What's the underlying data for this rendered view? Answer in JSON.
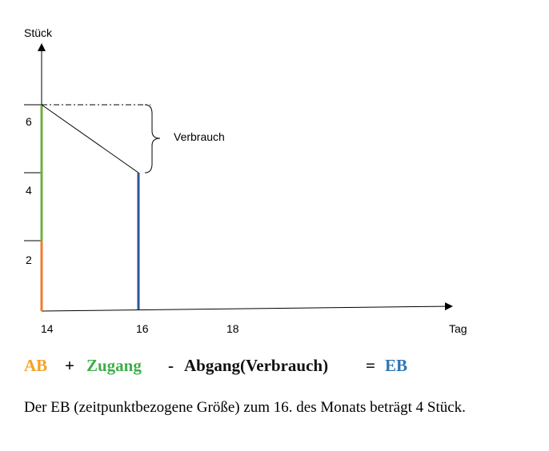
{
  "diagram": {
    "y_axis_label": "Stück",
    "x_axis_label": "Tag",
    "y_ticks": [
      "2",
      "4",
      "6"
    ],
    "x_ticks": [
      "14",
      "16",
      "18"
    ],
    "annotation": "Verbrauch",
    "colors": {
      "ab": "#ed7d31",
      "zugang": "#70ad47",
      "eb": "#2f5597",
      "axis": "#000000"
    }
  },
  "formula": {
    "ab": "AB",
    "plus": "+",
    "zugang": "Zugang",
    "minus": "-",
    "abgang": "Abgang(Verbrauch)",
    "equals": "=",
    "eb": "EB",
    "colors": {
      "ab": "#f4a227",
      "zugang": "#3fae49",
      "abgang": "#111111",
      "eb": "#2e75b6"
    }
  },
  "caption": "Der EB (zeitpunktbezogene Größe) zum 16. des Monats beträgt 4 Stück."
}
